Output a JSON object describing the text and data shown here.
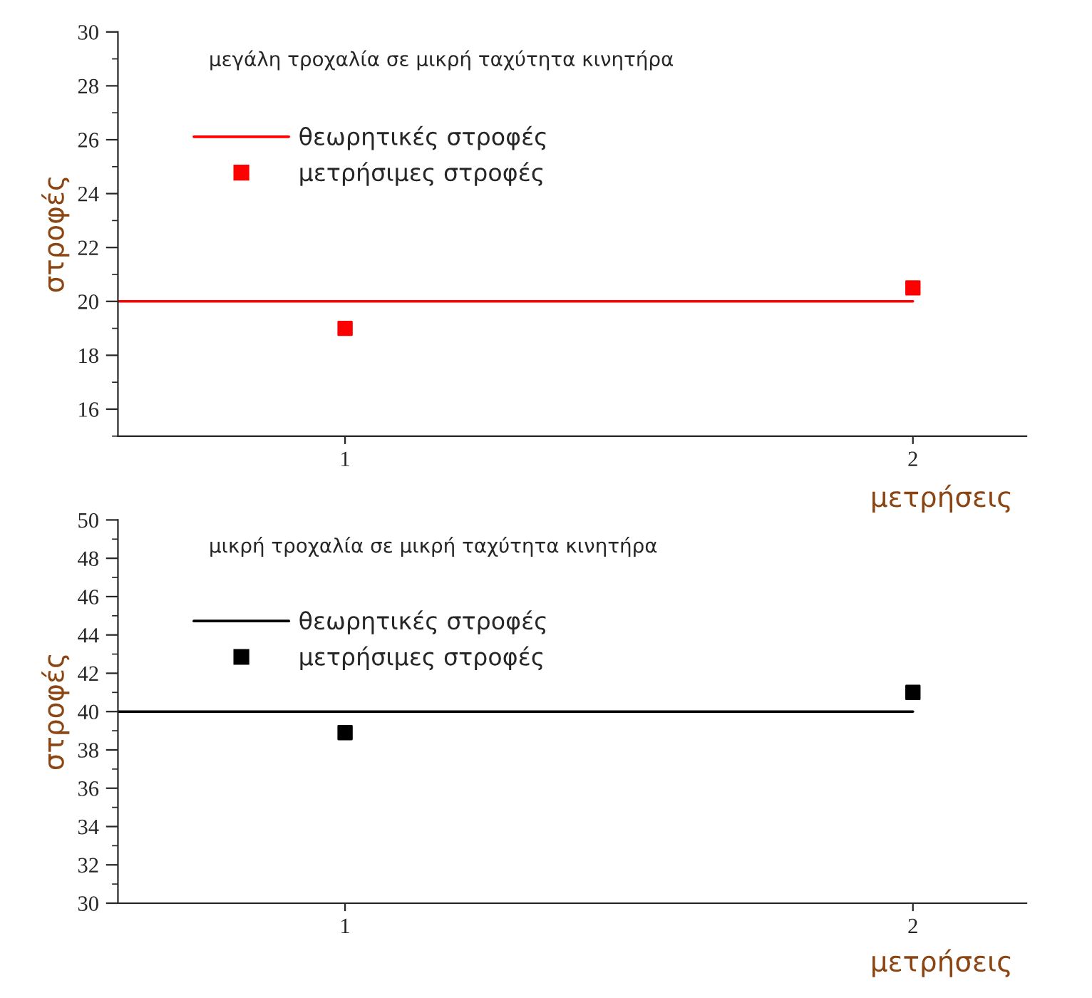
{
  "chart_data": [
    {
      "type": "scatter",
      "title": "μεγάλη τροχαλία σε μικρή ταχύτητα κινητήρα",
      "xlabel": "μετρήσεις",
      "ylabel": "στροφές",
      "xlim": [
        0.6,
        2.2
      ],
      "xticks": [
        1,
        2
      ],
      "ylim": [
        15,
        30
      ],
      "yticks": [
        16,
        18,
        20,
        22,
        24,
        26,
        28,
        30
      ],
      "legend": "top left",
      "grid": false,
      "series": [
        {
          "name": "θεωρητικές στροφές",
          "type": "line",
          "marker": "none",
          "color": "#ff0000",
          "x": [
            0.6,
            2
          ],
          "values": [
            20,
            20
          ]
        },
        {
          "name": "μετρήσιμες στροφές",
          "marker": "square",
          "color": "#ff0000",
          "x": [
            1,
            2
          ],
          "values": [
            19,
            20.5
          ]
        }
      ]
    },
    {
      "type": "scatter",
      "title": "μικρή τροχαλία σε μικρή ταχύτητα κινητήρα",
      "xlabel": "μετρήσεις",
      "ylabel": "στροφές",
      "xlim": [
        0.6,
        2.2
      ],
      "xticks": [
        1,
        2
      ],
      "ylim": [
        30,
        50
      ],
      "yticks": [
        30,
        32,
        34,
        36,
        38,
        40,
        42,
        44,
        46,
        48,
        50
      ],
      "legend": "top left",
      "grid": false,
      "series": [
        {
          "name": "θεωρητικές στροφές",
          "type": "line",
          "marker": "none",
          "color": "#000000",
          "x": [
            0.6,
            2
          ],
          "values": [
            40,
            40
          ]
        },
        {
          "name": "μετρήσιμες στροφές",
          "marker": "square",
          "color": "#000000",
          "x": [
            1,
            2
          ],
          "values": [
            38.9,
            41
          ]
        }
      ]
    }
  ]
}
